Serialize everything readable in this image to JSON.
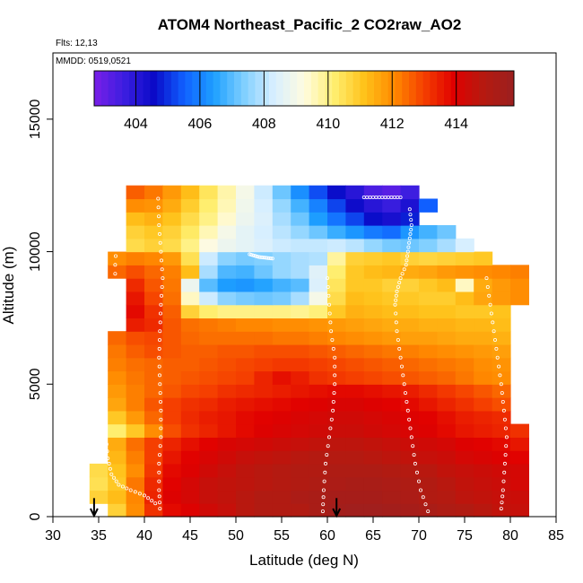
{
  "chart_data": {
    "type": "heatmap",
    "title": "ATOM4 Northeast_Pacific_2 CO2raw_AO2",
    "flights_text": "Flts: 12,13",
    "dates_text": "MMDD: 0519,0521",
    "xlabel": "Latitude (deg N)",
    "ylabel": "Altitude (m)",
    "xlim": [
      30,
      85
    ],
    "ylim": [
      0,
      17500
    ],
    "x_ticks": [
      30,
      35,
      40,
      45,
      50,
      55,
      60,
      65,
      70,
      75,
      80,
      85
    ],
    "y_ticks": [
      0,
      5000,
      10000,
      15000
    ],
    "colorbar": {
      "range": [
        402.7,
        415.8
      ],
      "ticks": [
        404,
        406,
        408,
        410,
        412,
        414
      ],
      "colors": [
        "#7a1fe8",
        "#3b1ee0",
        "#0a0ac8",
        "#1060ff",
        "#1ea0ff",
        "#80cfff",
        "#d8efff",
        "#fffbe0",
        "#ffef70",
        "#ffc21a",
        "#ff8a00",
        "#f53f00",
        "#e00000",
        "#b51a10",
        "#9b2020"
      ],
      "placement": "top, inside plot"
    },
    "bins": {
      "lat_edges": [
        34,
        36,
        38,
        40,
        42,
        44,
        46,
        48,
        50,
        52,
        54,
        56,
        58,
        60,
        62,
        64,
        66,
        68,
        70,
        72,
        74,
        76,
        78,
        80,
        82
      ],
      "alt_edges": [
        0,
        500,
        1000,
        1500,
        2000,
        2500,
        3000,
        3500,
        4000,
        4500,
        5000,
        5500,
        6000,
        6500,
        7000,
        7500,
        8000,
        8500,
        9000,
        9500,
        10000,
        10500,
        11000,
        11500,
        12000,
        12500
      ],
      "rows": [
        [
          null,
          410.8,
          412.0,
          413.2,
          413.8,
          414.0,
          414.3,
          414.5,
          414.8,
          415.0,
          415.0,
          415.0,
          415.3,
          415.5,
          415.6,
          415.6,
          415.5,
          415.4,
          415.3,
          415.1,
          415.0,
          414.8,
          414.6,
          414.5
        ],
        [
          410.8,
          411.2,
          412.1,
          413.4,
          414.0,
          414.2,
          414.5,
          414.6,
          414.8,
          415.0,
          415.0,
          415.2,
          415.3,
          415.4,
          415.4,
          415.4,
          415.3,
          415.2,
          415.0,
          414.9,
          414.7,
          414.6,
          414.5,
          414.4
        ],
        [
          410.5,
          411.0,
          412.3,
          413.3,
          413.9,
          414.2,
          414.5,
          414.6,
          414.7,
          414.8,
          414.9,
          415.0,
          415.1,
          415.2,
          415.3,
          415.3,
          415.2,
          415.1,
          415.0,
          414.8,
          414.6,
          414.5,
          414.4,
          414.2
        ],
        [
          410.6,
          411.1,
          412.0,
          413.1,
          413.8,
          414.0,
          414.3,
          414.5,
          414.7,
          414.8,
          414.9,
          415.0,
          415.0,
          415.1,
          415.1,
          415.1,
          415.0,
          414.9,
          414.8,
          414.6,
          414.5,
          414.4,
          414.3,
          414.2
        ],
        [
          null,
          411.3,
          412.2,
          413.0,
          413.6,
          413.9,
          414.1,
          414.3,
          414.5,
          414.6,
          414.7,
          414.8,
          414.9,
          414.9,
          414.9,
          414.8,
          414.7,
          414.6,
          414.5,
          414.4,
          414.2,
          414.1,
          414.0,
          413.9
        ],
        [
          null,
          411.5,
          412.4,
          413.0,
          413.4,
          413.7,
          413.9,
          414.1,
          414.2,
          414.3,
          414.4,
          414.5,
          414.6,
          414.7,
          414.7,
          414.6,
          414.5,
          414.4,
          414.3,
          414.2,
          414.0,
          413.9,
          413.8,
          413.6
        ],
        [
          null,
          410.2,
          411.0,
          412.0,
          412.8,
          413.2,
          413.4,
          413.6,
          413.8,
          414.0,
          414.1,
          414.2,
          414.3,
          414.4,
          414.4,
          414.3,
          414.2,
          414.1,
          414.0,
          413.8,
          413.6,
          413.5,
          413.4,
          413.2
        ],
        [
          null,
          411.0,
          411.8,
          412.5,
          413.0,
          413.3,
          413.5,
          413.6,
          413.8,
          413.9,
          414.0,
          414.1,
          414.2,
          414.3,
          414.3,
          414.2,
          414.1,
          414.0,
          413.9,
          413.7,
          413.5,
          413.4,
          413.3,
          null
        ],
        [
          null,
          411.6,
          412.2,
          412.7,
          413.0,
          413.2,
          413.3,
          413.5,
          413.6,
          413.7,
          413.8,
          413.9,
          414.0,
          414.1,
          414.1,
          414.0,
          413.9,
          413.8,
          413.6,
          413.4,
          413.2,
          413.0,
          412.8,
          null
        ],
        [
          null,
          411.8,
          412.2,
          412.5,
          412.7,
          412.9,
          413.0,
          413.2,
          413.3,
          413.4,
          413.5,
          413.6,
          413.7,
          413.8,
          413.8,
          413.7,
          413.6,
          413.5,
          413.3,
          413.1,
          412.9,
          412.7,
          412.5,
          null
        ],
        [
          null,
          412.0,
          412.3,
          412.5,
          412.6,
          412.7,
          412.8,
          412.9,
          413.0,
          413.4,
          413.7,
          413.5,
          413.2,
          413.1,
          413.0,
          412.9,
          412.8,
          412.7,
          412.6,
          412.5,
          412.3,
          412.1,
          412.0,
          null
        ],
        [
          null,
          412.2,
          412.4,
          412.5,
          412.6,
          412.6,
          412.7,
          412.8,
          412.9,
          413.0,
          413.1,
          413.1,
          413.0,
          412.9,
          412.8,
          412.7,
          412.6,
          412.5,
          412.4,
          412.3,
          412.2,
          412.0,
          411.9,
          null
        ],
        [
          null,
          412.3,
          412.6,
          412.8,
          412.7,
          412.6,
          412.6,
          412.7,
          412.7,
          412.8,
          412.8,
          412.8,
          412.7,
          412.6,
          412.5,
          412.4,
          412.3,
          412.2,
          412.1,
          412.0,
          411.9,
          411.8,
          411.7,
          null
        ],
        [
          null,
          412.5,
          412.8,
          412.9,
          412.7,
          412.5,
          412.4,
          412.4,
          412.4,
          412.4,
          412.3,
          412.3,
          412.2,
          412.1,
          412.0,
          411.9,
          411.8,
          411.7,
          411.7,
          411.6,
          411.5,
          411.5,
          411.4,
          null
        ],
        [
          null,
          null,
          413.5,
          413.3,
          412.7,
          412.4,
          412.3,
          412.2,
          412.1,
          412.1,
          412.0,
          412.0,
          411.9,
          411.8,
          411.7,
          411.6,
          411.5,
          411.5,
          411.4,
          411.4,
          411.3,
          411.3,
          411.2,
          null
        ],
        [
          null,
          null,
          413.8,
          413.2,
          412.6,
          410.8,
          410.2,
          410.0,
          410.0,
          410.0,
          410.0,
          409.9,
          410.1,
          411.0,
          411.4,
          411.3,
          411.2,
          411.2,
          411.1,
          411.1,
          411.0,
          411.0,
          411.1,
          null
        ],
        [
          null,
          null,
          413.6,
          412.9,
          412.4,
          409.5,
          408.2,
          407.5,
          407.3,
          407.2,
          407.3,
          407.8,
          409.0,
          410.6,
          411.2,
          411.1,
          411.0,
          411.0,
          410.9,
          410.9,
          411.2,
          411.6,
          411.8,
          412.0
        ],
        [
          null,
          null,
          413.3,
          412.7,
          412.3,
          408.8,
          407.0,
          406.4,
          406.3,
          406.5,
          406.8,
          407.0,
          408.4,
          410.4,
          411.0,
          411.0,
          410.8,
          410.8,
          411.0,
          411.2,
          409.5,
          411.5,
          411.8,
          412.0
        ],
        [
          null,
          412.5,
          412.8,
          412.5,
          412.2,
          411.2,
          407.8,
          406.9,
          406.8,
          407.2,
          407.6,
          407.8,
          408.5,
          410.2,
          411.0,
          411.2,
          411.3,
          411.5,
          411.6,
          411.8,
          411.9,
          412.0,
          412.1,
          412.2
        ],
        [
          null,
          412.0,
          412.2,
          412.1,
          411.8,
          410.5,
          408.2,
          407.5,
          407.3,
          407.4,
          407.6,
          407.8,
          407.9,
          409.8,
          410.8,
          410.9,
          411.0,
          410.8,
          410.7,
          410.8,
          410.9,
          411.0,
          null,
          null
        ],
        [
          null,
          null,
          410.6,
          410.8,
          410.6,
          410.0,
          409.2,
          408.8,
          408.6,
          408.4,
          408.2,
          408.1,
          408.1,
          408.2,
          408.0,
          407.6,
          407.3,
          407.2,
          407.4,
          407.8,
          408.3,
          null,
          null,
          null
        ],
        [
          null,
          null,
          410.8,
          411.0,
          410.8,
          410.3,
          409.6,
          409.0,
          408.6,
          408.3,
          408.0,
          407.6,
          407.2,
          406.7,
          406.3,
          405.9,
          405.7,
          406.3,
          406.8,
          407.2,
          null,
          null,
          null,
          null
        ],
        [
          null,
          null,
          411.2,
          411.4,
          411.1,
          410.6,
          410.0,
          409.4,
          408.8,
          408.4,
          407.8,
          407.2,
          406.4,
          405.8,
          405.2,
          404.6,
          404.3,
          404.8,
          null,
          null,
          null,
          null,
          null,
          null
        ],
        [
          null,
          null,
          412.0,
          411.9,
          411.5,
          410.9,
          410.2,
          409.6,
          408.9,
          408.3,
          407.6,
          406.8,
          406.0,
          405.2,
          404.5,
          404.0,
          403.7,
          404.2,
          405.5,
          null,
          null,
          null,
          null,
          null
        ],
        [
          null,
          null,
          412.6,
          412.3,
          411.8,
          411.2,
          410.4,
          409.7,
          409.0,
          408.2,
          407.2,
          406.2,
          405.3,
          404.6,
          404.0,
          403.4,
          403.2,
          403.6,
          null,
          null,
          null,
          null,
          null,
          null
        ]
      ]
    },
    "flight_tracks": [
      {
        "type": "descent",
        "points": [
          [
            41.5,
            12000
          ],
          [
            41.6,
            11000
          ],
          [
            41.8,
            10000
          ],
          [
            42.0,
            9000
          ],
          [
            41.8,
            8000
          ],
          [
            41.7,
            7000
          ],
          [
            41.6,
            6000
          ],
          [
            41.7,
            5000
          ],
          [
            41.8,
            4000
          ],
          [
            41.8,
            3000
          ],
          [
            41.6,
            2000
          ],
          [
            41.6,
            1000
          ],
          [
            41.7,
            300
          ]
        ]
      },
      {
        "type": "descent",
        "points": [
          [
            35.2,
            4800
          ],
          [
            35.4,
            4400
          ],
          [
            35.6,
            3800
          ],
          [
            35.8,
            3000
          ],
          [
            36.0,
            2200
          ],
          [
            36.4,
            1600
          ],
          [
            37.2,
            1200
          ],
          [
            38.5,
            1000
          ],
          [
            40.0,
            800
          ],
          [
            41.2,
            500
          ]
        ]
      },
      {
        "type": "ascent",
        "points": [
          [
            59.5,
            200
          ],
          [
            59.6,
            1000
          ],
          [
            59.8,
            2000
          ],
          [
            60.2,
            3000
          ],
          [
            60.6,
            4000
          ],
          [
            60.8,
            5000
          ],
          [
            60.8,
            6000
          ],
          [
            60.4,
            7000
          ],
          [
            60.2,
            8000
          ],
          [
            60.0,
            9000
          ]
        ]
      },
      {
        "type": "level",
        "points": [
          [
            51.5,
            9900
          ],
          [
            52.0,
            9850
          ],
          [
            52.5,
            9800
          ],
          [
            53.0,
            9780
          ],
          [
            53.5,
            9760
          ],
          [
            54.0,
            9740
          ]
        ]
      },
      {
        "type": "level",
        "points": [
          [
            64.0,
            12050
          ],
          [
            65.0,
            12050
          ],
          [
            66.0,
            12050
          ],
          [
            67.0,
            12050
          ],
          [
            68.0,
            12050
          ]
        ]
      },
      {
        "type": "descent",
        "points": [
          [
            69.0,
            11600
          ],
          [
            69.2,
            11000
          ],
          [
            69.0,
            10500
          ],
          [
            68.8,
            10000
          ],
          [
            68.6,
            9500
          ],
          [
            68.0,
            9000
          ],
          [
            67.6,
            8500
          ],
          [
            67.4,
            8000
          ],
          [
            67.6,
            7000
          ],
          [
            68.0,
            6000
          ],
          [
            68.4,
            5000
          ],
          [
            68.8,
            4000
          ],
          [
            69.2,
            3000
          ],
          [
            69.6,
            2000
          ],
          [
            70.2,
            1000
          ],
          [
            71.0,
            200
          ]
        ]
      },
      {
        "type": "descent",
        "points": [
          [
            79.0,
            300
          ],
          [
            79.2,
            1000
          ],
          [
            79.4,
            2000
          ],
          [
            79.6,
            3000
          ],
          [
            79.3,
            4000
          ],
          [
            79.0,
            5000
          ],
          [
            78.6,
            6000
          ],
          [
            78.2,
            7000
          ],
          [
            77.8,
            8000
          ],
          [
            77.4,
            9000
          ]
        ]
      },
      {
        "type": "descent",
        "points": [
          [
            37.0,
            12300
          ],
          [
            37.2,
            11500
          ],
          [
            37.0,
            10500
          ],
          [
            36.8,
            9500
          ],
          [
            36.8,
            8500
          ]
        ]
      }
    ],
    "markers": [
      {
        "type": "arrow",
        "x": 34.5,
        "y_top": 700,
        "y_bottom": 0
      },
      {
        "type": "arrow",
        "x": 61.0,
        "y_top": 700,
        "y_bottom": 0
      }
    ]
  }
}
